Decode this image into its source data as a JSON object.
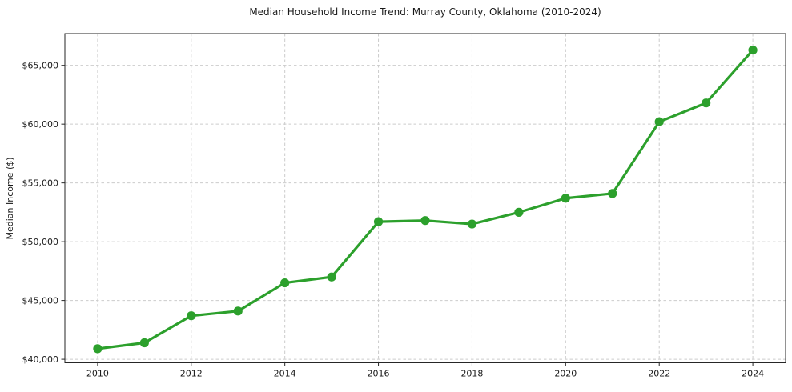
{
  "chart_data": {
    "type": "line",
    "title": "Median Household Income Trend: Murray County, Oklahoma (2010-2024)",
    "xlabel": "",
    "ylabel": "Median Income ($)",
    "x": [
      2010,
      2011,
      2012,
      2013,
      2014,
      2015,
      2016,
      2017,
      2018,
      2019,
      2020,
      2021,
      2022,
      2023,
      2024
    ],
    "series": [
      {
        "name": "Median Household Income",
        "values": [
          40900,
          41400,
          43700,
          44100,
          46500,
          47000,
          51700,
          51800,
          51500,
          52500,
          53700,
          54100,
          60200,
          61800,
          66300
        ]
      }
    ],
    "xlim": [
      2009.3,
      2024.7
    ],
    "ylim": [
      39700,
      67700
    ],
    "xticks": [
      2010,
      2012,
      2014,
      2016,
      2018,
      2020,
      2022,
      2024
    ],
    "xtick_labels": [
      "2010",
      "2012",
      "2014",
      "2016",
      "2018",
      "2020",
      "2022",
      "2024"
    ],
    "yticks": [
      40000,
      45000,
      50000,
      55000,
      60000,
      65000
    ],
    "ytick_labels": [
      "$40,000",
      "$45,000",
      "$50,000",
      "$55,000",
      "$60,000",
      "$65,000"
    ],
    "grid": true,
    "grid_style": "dashed",
    "legend_position": "none",
    "marker": "circle",
    "colors": {
      "line": "#2ca02c",
      "marker": "#2ca02c",
      "grid": "#cccccc",
      "spine": "#262626",
      "text": "#1a1a1a",
      "background": "#ffffff"
    }
  }
}
